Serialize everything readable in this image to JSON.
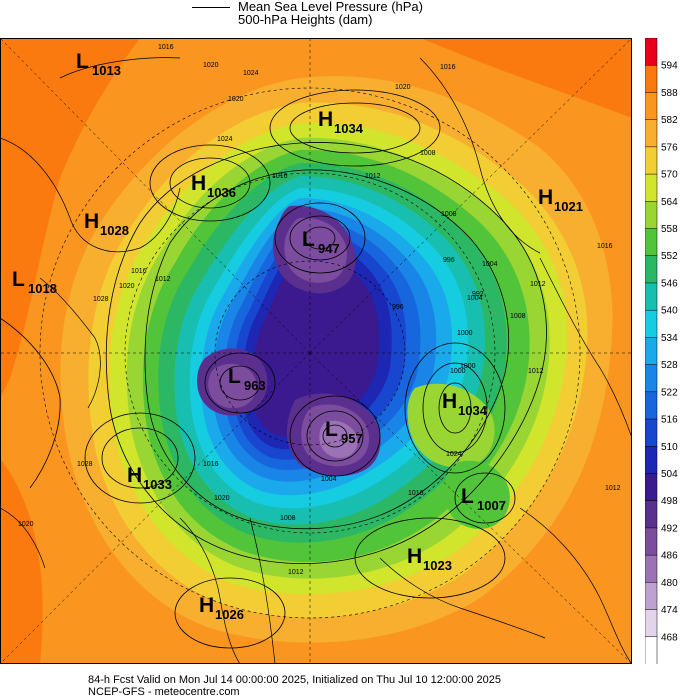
{
  "legend": {
    "line1": "Mean Sea Level Pressure (hPa)",
    "line2": "500-hPa Heights (dam)"
  },
  "colorbar": {
    "labels": [
      "594",
      "588",
      "582",
      "576",
      "570",
      "564",
      "558",
      "552",
      "546",
      "540",
      "534",
      "528",
      "522",
      "516",
      "510",
      "504",
      "498",
      "492",
      "486",
      "480",
      "474",
      "468"
    ],
    "colors": [
      "#e8001a",
      "#fb7a0f",
      "#fa9520",
      "#f8ae2e",
      "#f2cd33",
      "#d1e52c",
      "#99d633",
      "#52c43a",
      "#2bb764",
      "#18bfb1",
      "#16cce1",
      "#1aa9ea",
      "#1985e6",
      "#1866dd",
      "#1846cf",
      "#1d27b4",
      "#3a1a8e",
      "#5b2f8e",
      "#7c4d9e",
      "#9b72b5",
      "#bea1d0",
      "#e2d4ea",
      "#ffffff"
    ]
  },
  "pressure_centers": [
    {
      "type": "L",
      "value": "1013"
    },
    {
      "type": "H",
      "value": "1034"
    },
    {
      "type": "H",
      "value": "1036"
    },
    {
      "type": "H",
      "value": "1028"
    },
    {
      "type": "L",
      "value": "947"
    },
    {
      "type": "H",
      "value": "1021"
    },
    {
      "type": "L",
      "value": "1018"
    },
    {
      "type": "L",
      "value": "963"
    },
    {
      "type": "H",
      "value": "1034"
    },
    {
      "type": "L",
      "value": "957"
    },
    {
      "type": "H",
      "value": "1033"
    },
    {
      "type": "L",
      "value": "1007"
    },
    {
      "type": "H",
      "value": "1023"
    },
    {
      "type": "H",
      "value": "1026"
    }
  ],
  "isobar_labels": [
    "1016",
    "1020",
    "1024",
    "1020",
    "1016",
    "1016",
    "1012",
    "1008",
    "1004",
    "996",
    "1000",
    "1008",
    "1020",
    "1024",
    "1028",
    "1012",
    "1016",
    "1020",
    "1012",
    "1008",
    "1004",
    "1000",
    "1012",
    "1016",
    "1020",
    "1024",
    "1016",
    "1020",
    "1028",
    "1012",
    "996",
    "992",
    "1000",
    "1004",
    "1008",
    "1012",
    "1016"
  ],
  "footer": {
    "line1": "84-h Fcst Valid on Mon Jul 14 00:00:00 2025, Initialized on Thu Jul 10 12:00:00 2025",
    "line2": "NCEP-GFS  - meteocentre.com"
  }
}
